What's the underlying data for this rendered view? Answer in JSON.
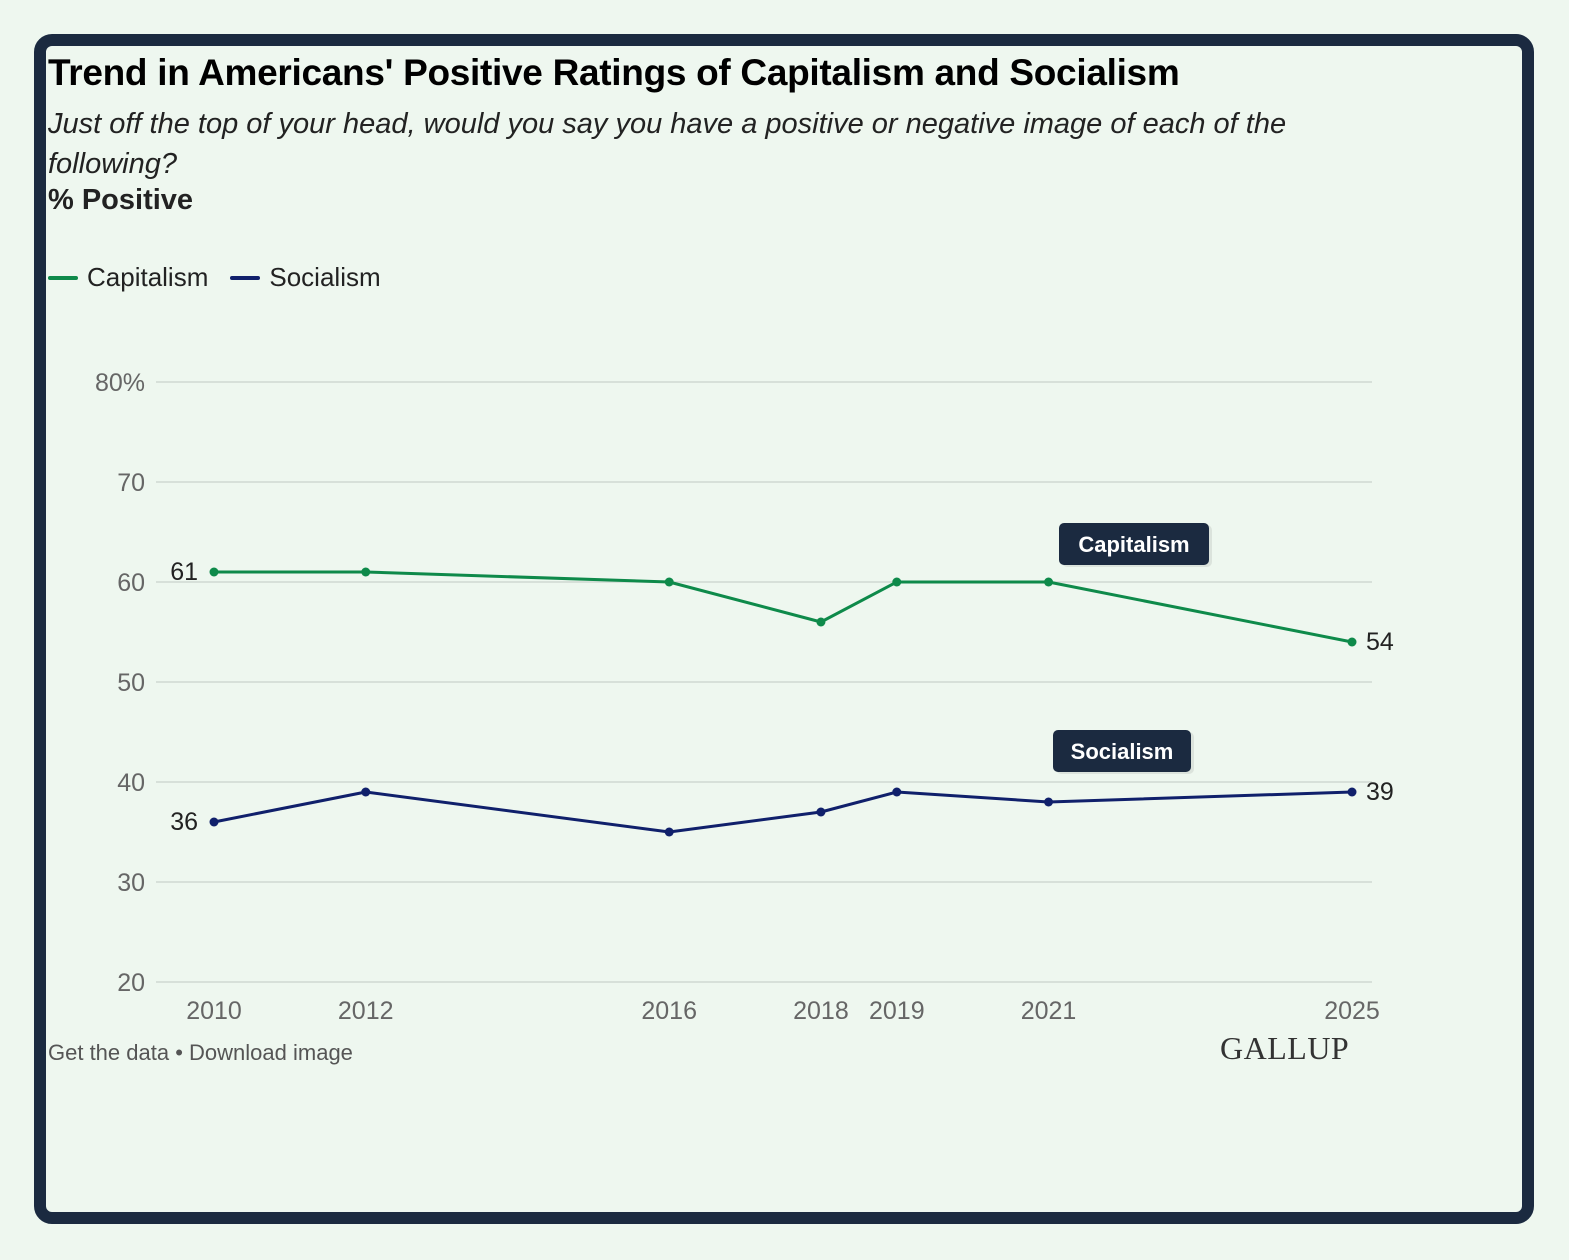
{
  "header": {
    "title": "Trend in Americans' Positive Ratings of Capitalism and Socialism",
    "subtitle": "Just off the top of your head, would you say you have a positive or negative image of each of the following?",
    "unit_label": "% Positive"
  },
  "legend": [
    {
      "label": "Capitalism",
      "color": "#0e8a4a"
    },
    {
      "label": "Socialism",
      "color": "#10206b"
    }
  ],
  "chart_data": {
    "type": "line",
    "title": "Trend in Americans' Positive Ratings of Capitalism and Socialism",
    "x": [
      2010,
      2012,
      2016,
      2018,
      2019,
      2021,
      2025
    ],
    "series": [
      {
        "name": "Capitalism",
        "color": "#0e8a4a",
        "values": [
          61,
          61,
          60,
          56,
          60,
          60,
          54
        ]
      },
      {
        "name": "Socialism",
        "color": "#10206b",
        "values": [
          36,
          39,
          35,
          37,
          39,
          38,
          39
        ]
      }
    ],
    "ylim": [
      20,
      80
    ],
    "yticks": [
      20,
      30,
      40,
      50,
      60,
      70,
      80
    ],
    "ytick_labels": [
      "20",
      "30",
      "40",
      "50",
      "60",
      "70",
      "80%"
    ],
    "xtick_labels": [
      "2010",
      "2012",
      "2016",
      "2018",
      "2019",
      "2021",
      "2025"
    ],
    "end_labels": [
      {
        "series": "Capitalism",
        "start": "61",
        "end": "54"
      },
      {
        "series": "Socialism",
        "start": "36",
        "end": "39"
      }
    ],
    "callouts": [
      {
        "series": "Capitalism",
        "text": "Capitalism",
        "near_year": 2021
      },
      {
        "series": "Socialism",
        "text": "Socialism",
        "near_year": 2021
      }
    ],
    "grid": true,
    "legend_position": "top-left"
  },
  "footer": {
    "get_data": "Get the data",
    "separator": "•",
    "download": "Download image",
    "brand": "GALLUP"
  },
  "colors": {
    "grid": "#cfd8d2",
    "tick_text": "#666666",
    "callout_bg": "#1b2a40",
    "frame": "#1b2a40"
  }
}
